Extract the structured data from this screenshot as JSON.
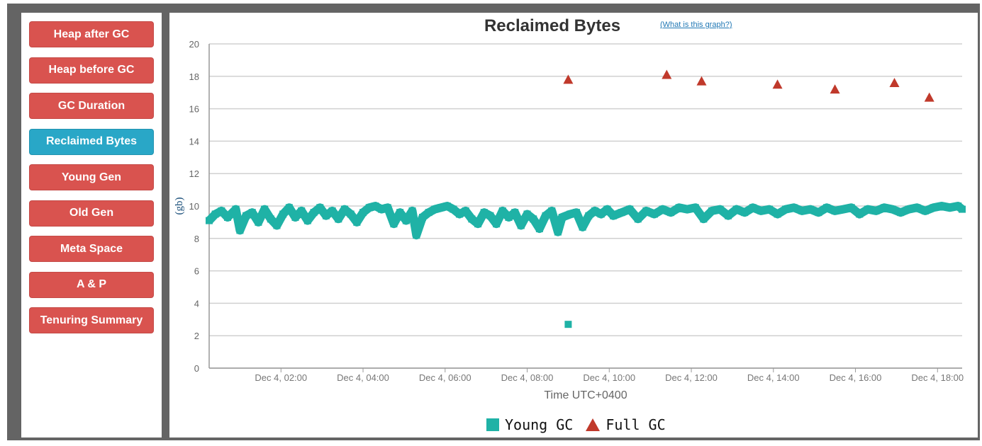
{
  "sidebar": {
    "items": [
      {
        "label": "Heap after GC",
        "active": false
      },
      {
        "label": "Heap before GC",
        "active": false
      },
      {
        "label": "GC Duration",
        "active": false
      },
      {
        "label": "Reclaimed Bytes",
        "active": true
      },
      {
        "label": "Young Gen",
        "active": false
      },
      {
        "label": "Old Gen",
        "active": false
      },
      {
        "label": "Meta Space",
        "active": false
      },
      {
        "label": "A & P",
        "active": false
      },
      {
        "label": "Tenuring Summary",
        "active": false
      }
    ],
    "colors": {
      "button": "#d9534f",
      "active": "#29a7c7"
    }
  },
  "chart": {
    "help_link": "(What is this graph?)"
  },
  "chart_data": {
    "type": "scatter",
    "title": "Reclaimed Bytes",
    "xlabel": "Time UTC+0400",
    "ylabel": "(gb)",
    "x_range_hours": [
      0.25,
      18.6
    ],
    "ylim": [
      0,
      20
    ],
    "yticks": [
      0,
      2,
      4,
      6,
      8,
      10,
      12,
      14,
      16,
      18,
      20
    ],
    "xticks": [
      {
        "hour": 2,
        "label": "Dec 4, 02:00"
      },
      {
        "hour": 4,
        "label": "Dec 4, 04:00"
      },
      {
        "hour": 6,
        "label": "Dec 4, 06:00"
      },
      {
        "hour": 8,
        "label": "Dec 4, 08:00"
      },
      {
        "hour": 10,
        "label": "Dec 4, 10:00"
      },
      {
        "hour": 12,
        "label": "Dec 4, 12:00"
      },
      {
        "hour": 14,
        "label": "Dec 4, 14:00"
      },
      {
        "hour": 16,
        "label": "Dec 4, 16:00"
      },
      {
        "hour": 18,
        "label": "Dec 4, 18:00"
      }
    ],
    "grid": true,
    "legend": "bottom",
    "series": [
      {
        "name": "Young GC",
        "marker": "square",
        "color": "#1fb2a6",
        "points": [
          [
            0.25,
            9.1
          ],
          [
            0.4,
            9.5
          ],
          [
            0.55,
            9.7
          ],
          [
            0.7,
            9.3
          ],
          [
            0.9,
            9.8
          ],
          [
            1.0,
            8.5
          ],
          [
            1.15,
            9.4
          ],
          [
            1.3,
            9.6
          ],
          [
            1.45,
            9.0
          ],
          [
            1.6,
            9.8
          ],
          [
            1.75,
            9.2
          ],
          [
            1.9,
            8.8
          ],
          [
            2.05,
            9.5
          ],
          [
            2.2,
            9.9
          ],
          [
            2.35,
            9.3
          ],
          [
            2.5,
            9.7
          ],
          [
            2.65,
            9.1
          ],
          [
            2.8,
            9.6
          ],
          [
            2.95,
            9.9
          ],
          [
            3.1,
            9.4
          ],
          [
            3.25,
            9.7
          ],
          [
            3.4,
            9.2
          ],
          [
            3.55,
            9.8
          ],
          [
            3.7,
            9.5
          ],
          [
            3.85,
            9.0
          ],
          [
            4.0,
            9.6
          ],
          [
            4.15,
            9.9
          ],
          [
            4.3,
            10.0
          ],
          [
            4.45,
            9.8
          ],
          [
            4.6,
            9.9
          ],
          [
            4.75,
            8.9
          ],
          [
            4.9,
            9.6
          ],
          [
            5.05,
            9.1
          ],
          [
            5.2,
            9.7
          ],
          [
            5.3,
            8.2
          ],
          [
            5.45,
            9.3
          ],
          [
            5.6,
            9.6
          ],
          [
            5.75,
            9.8
          ],
          [
            5.9,
            9.9
          ],
          [
            6.05,
            10.0
          ],
          [
            6.2,
            9.8
          ],
          [
            6.35,
            9.5
          ],
          [
            6.5,
            9.7
          ],
          [
            6.65,
            9.2
          ],
          [
            6.8,
            8.9
          ],
          [
            6.95,
            9.6
          ],
          [
            7.1,
            9.4
          ],
          [
            7.25,
            8.9
          ],
          [
            7.4,
            9.7
          ],
          [
            7.55,
            9.3
          ],
          [
            7.7,
            9.6
          ],
          [
            7.85,
            8.8
          ],
          [
            8.0,
            9.5
          ],
          [
            8.15,
            9.2
          ],
          [
            8.3,
            8.6
          ],
          [
            8.45,
            9.4
          ],
          [
            8.6,
            9.7
          ],
          [
            8.75,
            8.4
          ],
          [
            8.85,
            9.3
          ],
          [
            9.0,
            2.7
          ],
          [
            9.05,
            9.5
          ],
          [
            9.2,
            9.6
          ],
          [
            9.35,
            8.7
          ],
          [
            9.5,
            9.4
          ],
          [
            9.65,
            9.7
          ],
          [
            9.8,
            9.5
          ],
          [
            9.95,
            9.8
          ],
          [
            10.1,
            9.4
          ],
          [
            10.3,
            9.6
          ],
          [
            10.5,
            9.8
          ],
          [
            10.7,
            9.2
          ],
          [
            10.9,
            9.7
          ],
          [
            11.1,
            9.5
          ],
          [
            11.3,
            9.8
          ],
          [
            11.5,
            9.6
          ],
          [
            11.7,
            9.9
          ],
          [
            11.9,
            9.8
          ],
          [
            12.1,
            9.9
          ],
          [
            12.3,
            9.2
          ],
          [
            12.5,
            9.7
          ],
          [
            12.7,
            9.8
          ],
          [
            12.9,
            9.4
          ],
          [
            13.1,
            9.8
          ],
          [
            13.3,
            9.6
          ],
          [
            13.5,
            9.9
          ],
          [
            13.7,
            9.7
          ],
          [
            13.9,
            9.8
          ],
          [
            14.1,
            9.5
          ],
          [
            14.3,
            9.8
          ],
          [
            14.5,
            9.9
          ],
          [
            14.7,
            9.7
          ],
          [
            14.9,
            9.8
          ],
          [
            15.1,
            9.6
          ],
          [
            15.3,
            9.9
          ],
          [
            15.5,
            9.7
          ],
          [
            15.7,
            9.8
          ],
          [
            15.9,
            9.9
          ],
          [
            16.1,
            9.5
          ],
          [
            16.3,
            9.8
          ],
          [
            16.5,
            9.7
          ],
          [
            16.7,
            9.9
          ],
          [
            16.9,
            9.8
          ],
          [
            17.1,
            9.6
          ],
          [
            17.3,
            9.8
          ],
          [
            17.5,
            9.9
          ],
          [
            17.7,
            9.7
          ],
          [
            17.9,
            9.9
          ],
          [
            18.1,
            10.0
          ],
          [
            18.3,
            9.9
          ],
          [
            18.5,
            10.0
          ],
          [
            18.6,
            9.8
          ]
        ]
      },
      {
        "name": "Full GC",
        "marker": "triangle",
        "color": "#c0392b",
        "points": [
          [
            9.0,
            17.8
          ],
          [
            11.4,
            18.1
          ],
          [
            12.25,
            17.7
          ],
          [
            14.1,
            17.5
          ],
          [
            15.5,
            17.2
          ],
          [
            16.95,
            17.6
          ],
          [
            17.8,
            16.7
          ]
        ]
      }
    ]
  }
}
